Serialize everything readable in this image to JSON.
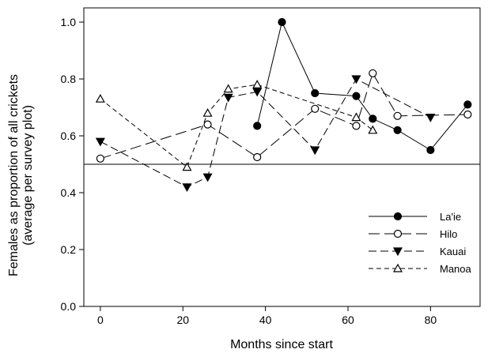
{
  "chart_data": {
    "type": "line",
    "xlabel": "Months since start",
    "ylabel_lines": [
      "Females as proportion of all crickets",
      "(average per survey plot)"
    ],
    "xlim": [
      -4,
      92
    ],
    "ylim": [
      0.0,
      1.05
    ],
    "xticks": [
      0,
      20,
      40,
      60,
      80
    ],
    "yticks": [
      0.0,
      0.2,
      0.4,
      0.6,
      0.8,
      1.0
    ],
    "xtick_labels": [
      "0",
      "20",
      "40",
      "60",
      "80"
    ],
    "ytick_labels": [
      "0.0",
      "0.2",
      "0.4",
      "0.6",
      "0.8",
      "1.0"
    ],
    "reference_line": 0.5,
    "grid": false,
    "legend_position": "lower-right",
    "series": [
      {
        "name": "La'ie",
        "marker": "circle-filled",
        "dash": "solid",
        "x": [
          38,
          44,
          52,
          62,
          66,
          72,
          80,
          89
        ],
        "y": [
          0.635,
          1.0,
          0.75,
          0.74,
          0.66,
          0.62,
          0.55,
          0.71
        ]
      },
      {
        "name": "Hilo",
        "marker": "circle-open",
        "dash": "long",
        "x": [
          0,
          26,
          38,
          52,
          62,
          66,
          72,
          89
        ],
        "y": [
          0.52,
          0.64,
          0.525,
          0.695,
          0.635,
          0.82,
          0.67,
          0.675
        ]
      },
      {
        "name": "Kauai",
        "marker": "triangle-down-filled",
        "dash": "medium",
        "x": [
          0,
          21,
          26,
          31,
          38,
          52,
          62,
          80
        ],
        "y": [
          0.58,
          0.42,
          0.455,
          0.735,
          0.755,
          0.55,
          0.8,
          0.665
        ]
      },
      {
        "name": "Manoa",
        "marker": "triangle-up-open",
        "dash": "short",
        "x": [
          0,
          21,
          26,
          31,
          38,
          62,
          66
        ],
        "y": [
          0.73,
          0.49,
          0.68,
          0.765,
          0.78,
          0.665,
          0.62
        ]
      }
    ]
  }
}
